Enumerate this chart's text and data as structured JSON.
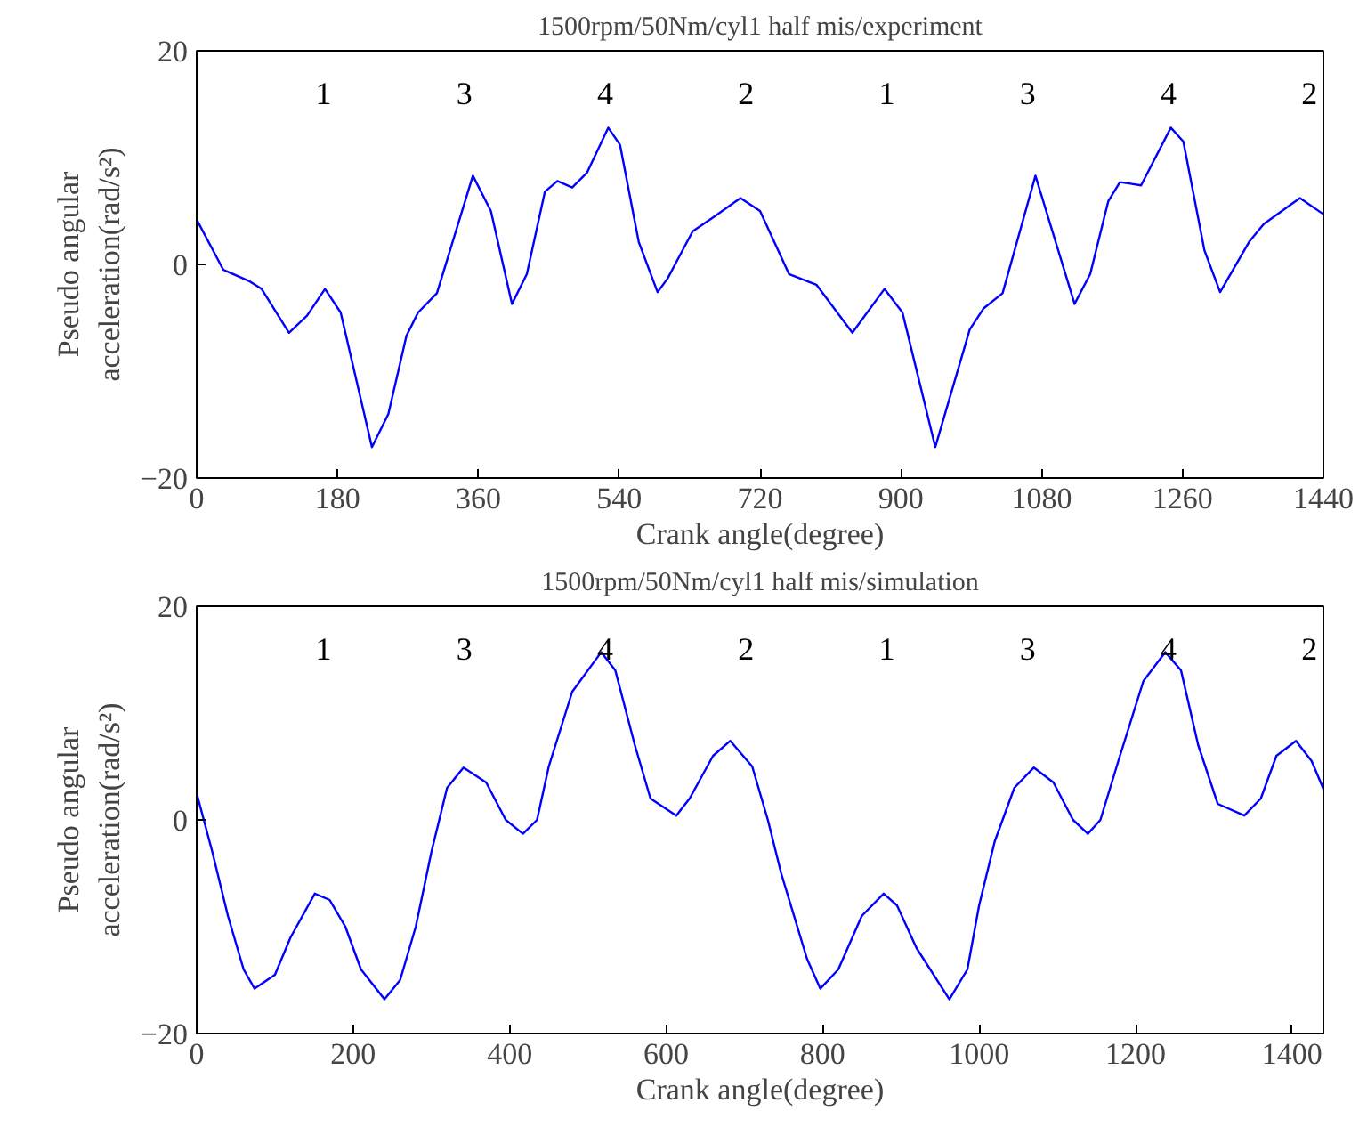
{
  "chart_data": [
    {
      "type": "line",
      "title": "1500rpm/50Nm/cyl1 half mis/experiment",
      "xlabel": "Crank angle(degree)",
      "ylabel": "Pseudo angular\nacceleration(rad/s²)",
      "xlim": [
        0,
        1440
      ],
      "ylim": [
        -20,
        20
      ],
      "xticks": [
        0,
        180,
        360,
        540,
        720,
        900,
        1080,
        1260,
        1440
      ],
      "yticks": [
        -20,
        0,
        20
      ],
      "grid": false,
      "marker": "none",
      "line_style": "solid",
      "series": [
        {
          "color": "#0000ff",
          "x": [
            0,
            34,
            68,
            83,
            118,
            141,
            164,
            184,
            224,
            245,
            268,
            283,
            307,
            353,
            376,
            403,
            422,
            445,
            461,
            480,
            499,
            526,
            541,
            565,
            589,
            602,
            634,
            660,
            695,
            720,
            757,
            792,
            838,
            879,
            902,
            944,
            988,
            1006,
            1030,
            1072,
            1122,
            1142,
            1165,
            1180,
            1207,
            1245,
            1261,
            1288,
            1308,
            1345,
            1364,
            1410,
            1440
          ],
          "values": [
            4.2,
            -0.5,
            -1.6,
            -2.3,
            -6.4,
            -4.8,
            -2.3,
            -4.5,
            -17.1,
            -14,
            -6.7,
            -4.5,
            -2.7,
            8.3,
            5,
            -3.7,
            -0.9,
            6.8,
            7.8,
            7.2,
            8.6,
            12.8,
            11.2,
            2.1,
            -2.6,
            -1.3,
            3.1,
            4.4,
            6.2,
            5,
            -0.9,
            -1.9,
            -6.4,
            -2.3,
            -4.5,
            -17.1,
            -6.1,
            -4.1,
            -2.7,
            8.3,
            -3.7,
            -0.9,
            5.9,
            7.7,
            7.4,
            12.8,
            11.5,
            1.3,
            -2.6,
            2.1,
            3.8,
            6.2,
            4.7
          ]
        }
      ],
      "annotations": [
        "1",
        "3",
        "4",
        "2",
        "1",
        "3",
        "4",
        "2"
      ]
    },
    {
      "type": "line",
      "title": "1500rpm/50Nm/cyl1 half mis/simulation",
      "xlabel": "Crank angle(degree)",
      "ylabel": "Pseudo angular\nacceleration(rad/s²)",
      "xlim": [
        0,
        1440
      ],
      "ylim": [
        -20,
        20
      ],
      "xticks": [
        0,
        200,
        400,
        600,
        800,
        1000,
        1200,
        1400
      ],
      "yticks": [
        -20,
        0,
        20
      ],
      "grid": false,
      "marker": "none",
      "line_style": "solid",
      "series": [
        {
          "color": "#0000ff",
          "x": [
            0,
            20,
            40,
            60,
            74,
            100,
            120,
            151,
            170,
            190,
            210,
            240,
            260,
            280,
            300,
            320,
            341,
            370,
            395,
            417,
            435,
            450,
            480,
            517,
            535,
            560,
            580,
            613,
            630,
            660,
            682,
            710,
            730,
            747,
            780,
            797,
            820,
            850,
            878,
            895,
            920,
            962,
            985,
            1000,
            1020,
            1045,
            1070,
            1095,
            1120,
            1139,
            1155,
            1180,
            1210,
            1238,
            1258,
            1280,
            1305,
            1339,
            1360,
            1380,
            1405,
            1425,
            1440
          ],
          "values": [
            2.5,
            -3,
            -9,
            -14,
            -15.8,
            -14.5,
            -11,
            -6.9,
            -7.5,
            -10,
            -14,
            -16.8,
            -15,
            -10,
            -3,
            3,
            4.9,
            3.5,
            0,
            -1.3,
            0,
            5,
            12,
            15.7,
            14,
            7,
            2,
            0.4,
            2,
            6,
            7.4,
            5,
            0,
            -5,
            -13,
            -15.8,
            -14,
            -9,
            -6.9,
            -8,
            -12,
            -16.8,
            -14,
            -8,
            -2,
            3,
            4.9,
            3.5,
            0,
            -1.3,
            0,
            6,
            13,
            15.7,
            14,
            7,
            1.5,
            0.4,
            2,
            6,
            7.4,
            5.5,
            2.9
          ]
        }
      ],
      "annotations": [
        "1",
        "3",
        "4",
        "2",
        "1",
        "3",
        "4",
        "2"
      ]
    }
  ]
}
